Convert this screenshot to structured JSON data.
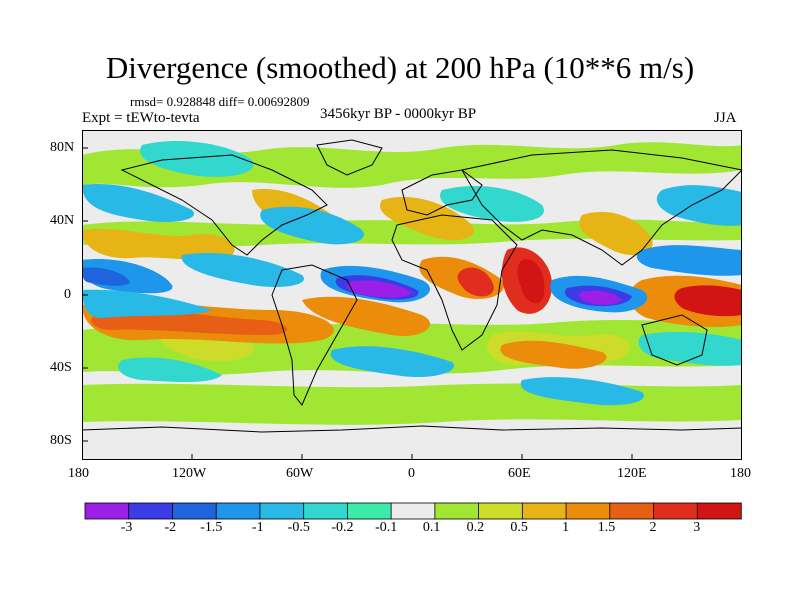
{
  "title": "Divergence (smoothed) at 200 hPa (10**6 m/s)",
  "stats": "rmsd= 0.928848 diff= 0.00692809",
  "experiment": "Expt = tEWto-tevta",
  "period": "3456kyr BP - 0000kyr BP",
  "season": "JJA",
  "lat_labels": [
    "80N",
    "40N",
    "0",
    "40S",
    "80S"
  ],
  "lon_labels": [
    "180",
    "120W",
    "60W",
    "0",
    "60E",
    "120E",
    "180"
  ],
  "colorbar": {
    "levels": [
      "-3",
      "-2",
      "-1.5",
      "-1",
      "-0.5",
      "-0.2",
      "-0.1",
      "0.1",
      "0.2",
      "0.5",
      "1",
      "1.5",
      "2",
      "3"
    ],
    "colors": [
      "#9c1fe8",
      "#3c3ce6",
      "#1e64dc",
      "#1e96eb",
      "#28b9e6",
      "#32d7cd",
      "#3cebaa",
      "#ececec",
      "#a0e632",
      "#ccdc28",
      "#e6b414",
      "#eb8c0a",
      "#e65f14",
      "#e12d1e",
      "#d21414"
    ]
  },
  "palette": {
    "background": "#ececec",
    "coast": "#000000"
  }
}
